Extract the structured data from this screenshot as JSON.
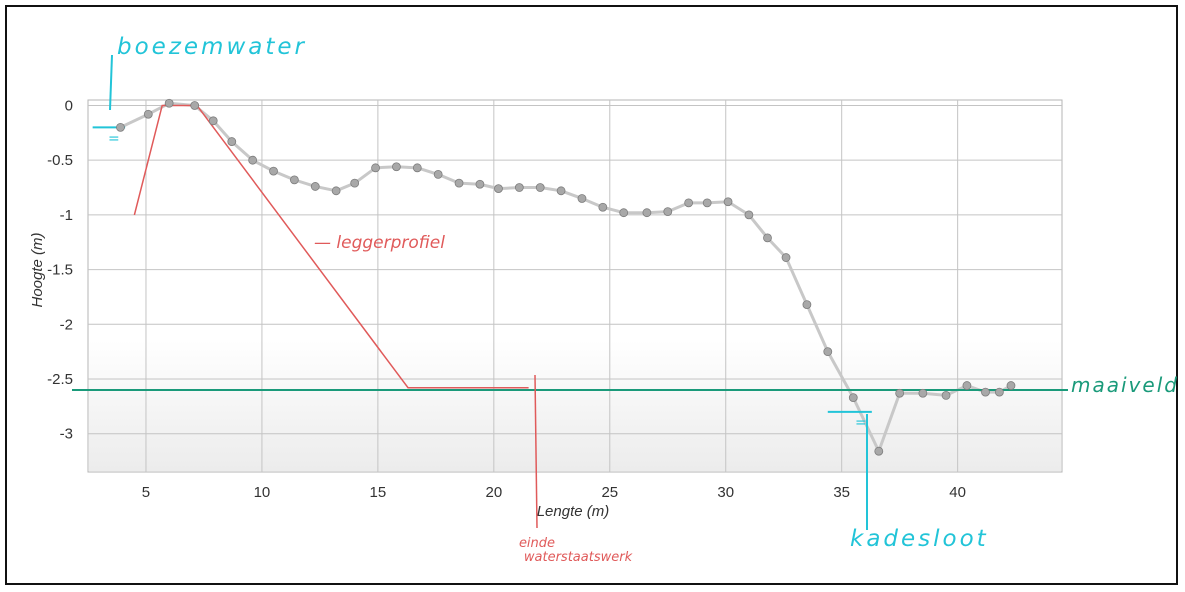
{
  "chart_data": {
    "type": "line",
    "xlabel": "Lengte (m)",
    "ylabel": "Hoogte (m)",
    "xlim": [
      2.5,
      44.5
    ],
    "ylim": [
      -3.35,
      0.05
    ],
    "x_ticks": [
      5,
      10,
      15,
      20,
      25,
      30,
      35,
      40
    ],
    "y_ticks": [
      0,
      -0.5,
      -1,
      -1.5,
      -2,
      -2.5,
      -3
    ],
    "grid": true,
    "series": [
      {
        "color": "#c8c8c8",
        "marker_color": "#a8a8a8",
        "x": [
          3.9,
          5.1,
          6.0,
          7.1,
          7.9,
          8.7,
          9.6,
          10.5,
          11.4,
          12.3,
          13.2,
          14.0,
          14.9,
          15.8,
          16.7,
          17.6,
          18.5,
          19.4,
          20.2,
          21.1,
          22.0,
          22.9,
          23.8,
          24.7,
          25.6,
          26.6,
          27.5,
          28.4,
          29.2,
          30.1,
          31.0,
          31.8,
          32.6,
          33.5,
          34.4,
          35.5,
          36.6,
          37.5,
          38.5,
          39.5,
          40.4,
          41.2,
          41.8,
          42.3
        ],
        "y": [
          -0.2,
          -0.08,
          0.02,
          0.0,
          -0.14,
          -0.33,
          -0.5,
          -0.6,
          -0.68,
          -0.74,
          -0.78,
          -0.71,
          -0.57,
          -0.56,
          -0.57,
          -0.63,
          -0.71,
          -0.72,
          -0.76,
          -0.75,
          -0.75,
          -0.78,
          -0.85,
          -0.93,
          -0.98,
          -0.98,
          -0.97,
          -0.89,
          -0.89,
          -0.88,
          -1.0,
          -1.21,
          -1.39,
          -1.82,
          -2.25,
          -2.67,
          -3.16,
          -2.63,
          -2.63,
          -2.65,
          -2.56,
          -2.62,
          -2.62,
          -2.56
        ]
      }
    ]
  },
  "overlays": {
    "legger_profiel": {
      "color": "#e05a5a",
      "x": [
        4.5,
        5.7,
        7.2,
        16.3,
        21.5
      ],
      "y": [
        -1.0,
        0.0,
        0.0,
        -2.58,
        -2.58
      ]
    },
    "maaiveld": {
      "color": "#1a9a7a",
      "y": -2.6
    },
    "water_left": {
      "color": "#22c4d8",
      "x": [
        2.7,
        4.1
      ],
      "y": -0.2
    },
    "water_right": {
      "color": "#22c4d8",
      "x": [
        34.4,
        36.3
      ],
      "y": -2.8
    }
  },
  "annotations": {
    "boezemwater": "boezemwater",
    "leggerprofiel": "— leggerprofiel",
    "maaiveld": "maaiveld",
    "kadesloot": "kadesloot",
    "einde_line1": "einde",
    "einde_line2": "waterstaatswerk",
    "water_symbol": "="
  }
}
